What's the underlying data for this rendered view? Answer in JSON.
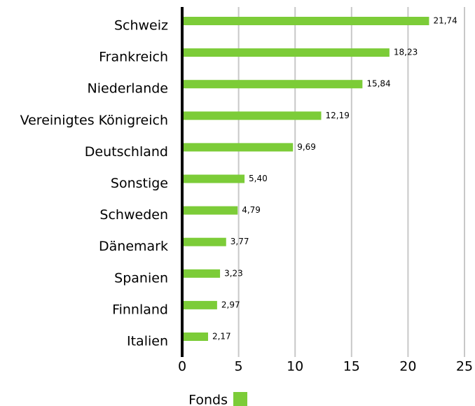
{
  "chart_data": {
    "type": "bar",
    "orientation": "horizontal",
    "categories": [
      "Schweiz",
      "Frankreich",
      "Niederlande",
      "Vereinigtes Königreich",
      "Deutschland",
      "Sonstige",
      "Schweden",
      "Dänemark",
      "Spanien",
      "Finnland",
      "Italien"
    ],
    "series": [
      {
        "name": "Fonds",
        "color": "#7ccc38",
        "values": [
          21.74,
          18.23,
          15.84,
          12.19,
          9.69,
          5.4,
          4.79,
          3.77,
          3.23,
          2.97,
          2.17
        ],
        "value_labels": [
          "21,74",
          "18,23",
          "15,84",
          "12,19",
          "9,69",
          "5,40",
          "4,79",
          "3,77",
          "3,23",
          "2,97",
          "2,17"
        ]
      }
    ],
    "xlim": [
      0,
      25
    ],
    "xticks": [
      0,
      5,
      10,
      15,
      20,
      25
    ],
    "grid": true
  }
}
